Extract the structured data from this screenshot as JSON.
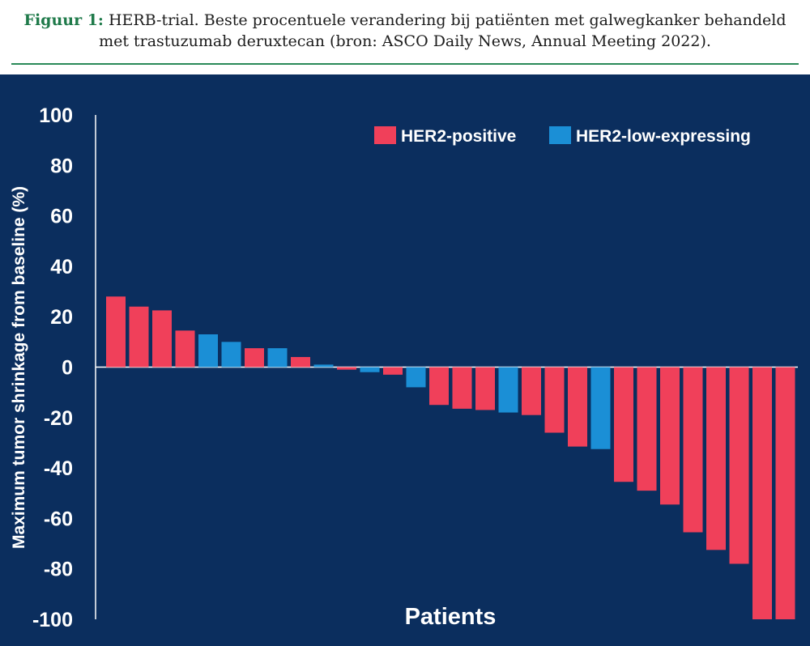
{
  "caption": {
    "label": "Figuur 1:",
    "text": "HERB-trial. Beste procentuele verandering bij patiënten met galwegkanker behandeld met trastuzumab deruxtecan (bron: ASCO Daily News, Annual Meeting 2022)."
  },
  "chart_data": {
    "type": "bar",
    "title": "",
    "xlabel": "Patients",
    "ylabel": "Maximum tumor shrinkage from baseline (%)",
    "ylim": [
      -100,
      100
    ],
    "yticks": [
      100,
      80,
      60,
      40,
      20,
      0,
      -20,
      -40,
      -60,
      -80,
      -100
    ],
    "grid": false,
    "legend_position": "top-right",
    "series": [
      {
        "name": "HER2-positive",
        "color": "#f0405a"
      },
      {
        "name": "HER2-low-expressing",
        "color": "#1b8fd6"
      }
    ],
    "bars": [
      {
        "value": 28,
        "series": "HER2-positive"
      },
      {
        "value": 24,
        "series": "HER2-positive"
      },
      {
        "value": 22.5,
        "series": "HER2-positive"
      },
      {
        "value": 14.5,
        "series": "HER2-positive"
      },
      {
        "value": 13,
        "series": "HER2-low-expressing"
      },
      {
        "value": 10,
        "series": "HER2-low-expressing"
      },
      {
        "value": 7.5,
        "series": "HER2-positive"
      },
      {
        "value": 7.5,
        "series": "HER2-low-expressing"
      },
      {
        "value": 4,
        "series": "HER2-positive"
      },
      {
        "value": 1,
        "series": "HER2-low-expressing"
      },
      {
        "value": -1,
        "series": "HER2-positive"
      },
      {
        "value": -2,
        "series": "HER2-low-expressing"
      },
      {
        "value": -3,
        "series": "HER2-positive"
      },
      {
        "value": -8,
        "series": "HER2-low-expressing"
      },
      {
        "value": -15,
        "series": "HER2-positive"
      },
      {
        "value": -16.5,
        "series": "HER2-positive"
      },
      {
        "value": -17,
        "series": "HER2-positive"
      },
      {
        "value": -18,
        "series": "HER2-low-expressing"
      },
      {
        "value": -19,
        "series": "HER2-positive"
      },
      {
        "value": -26,
        "series": "HER2-positive"
      },
      {
        "value": -31.5,
        "series": "HER2-positive"
      },
      {
        "value": -32.5,
        "series": "HER2-low-expressing"
      },
      {
        "value": -45.5,
        "series": "HER2-positive"
      },
      {
        "value": -49,
        "series": "HER2-positive"
      },
      {
        "value": -54.5,
        "series": "HER2-positive"
      },
      {
        "value": -65.5,
        "series": "HER2-positive"
      },
      {
        "value": -72.5,
        "series": "HER2-positive"
      },
      {
        "value": -78,
        "series": "HER2-positive"
      },
      {
        "value": -100,
        "series": "HER2-positive"
      },
      {
        "value": -100,
        "series": "HER2-positive"
      }
    ],
    "background": "#0b2e5e",
    "axis_color": "#ffffff"
  }
}
